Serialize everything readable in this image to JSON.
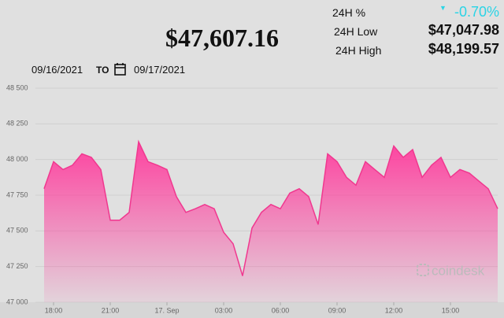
{
  "header": {
    "price": "$47,607.16",
    "change_label": "24H %",
    "change": "-0.70%",
    "low_label": "24H Low",
    "low": "$47,047.98",
    "high_label": "24H High",
    "high": "$48,199.57",
    "from_date": "09/16/2021",
    "to_label": "TO",
    "to_date": "09/17/2021"
  },
  "chart_data": {
    "type": "area",
    "color": "#f0388f",
    "watermark": "coindesk",
    "categories": [
      "17:30",
      "18:00",
      "18:30",
      "19:00",
      "19:30",
      "20:00",
      "20:30",
      "21:00",
      "21:30",
      "22:00",
      "22:30",
      "23:00",
      "23:30",
      "00:00",
      "00:30",
      "01:00",
      "01:30",
      "02:00",
      "02:30",
      "03:00",
      "03:30",
      "04:00",
      "04:30",
      "05:00",
      "05:30",
      "06:00",
      "06:30",
      "07:00",
      "07:30",
      "08:00",
      "08:30",
      "09:00",
      "09:30",
      "10:00",
      "10:30",
      "11:00",
      "11:30",
      "12:00",
      "12:30",
      "13:00",
      "13:30",
      "14:00",
      "14:30",
      "15:00",
      "15:30",
      "16:00",
      "16:30",
      "17:00",
      "17:30"
    ],
    "values": [
      47795,
      47985,
      47930,
      47960,
      48040,
      48015,
      47930,
      47575,
      47575,
      47630,
      48125,
      47985,
      47960,
      47930,
      47740,
      47630,
      47655,
      47685,
      47655,
      47490,
      47410,
      47185,
      47520,
      47630,
      47685,
      47655,
      47765,
      47795,
      47740,
      47545,
      48040,
      47985,
      47875,
      47820,
      47985,
      47930,
      47875,
      48095,
      48015,
      48070,
      47875,
      47960,
      48015,
      47875,
      47930,
      47905,
      47850,
      47795,
      47655
    ],
    "ylim": [
      47000,
      48500
    ],
    "yticks": [
      {
        "value": 47000,
        "label": "47 000"
      },
      {
        "value": 47250,
        "label": "47 250"
      },
      {
        "value": 47500,
        "label": "47 500"
      },
      {
        "value": 47750,
        "label": "47 750"
      },
      {
        "value": 48000,
        "label": "48 000"
      },
      {
        "value": 48250,
        "label": "48 250"
      },
      {
        "value": 48500,
        "label": "48 500"
      }
    ],
    "xticks": [
      "18:00",
      "21:00",
      {
        "value": "00:00",
        "label": "17. Sep"
      },
      "03:00",
      "06:00",
      "09:00",
      "12:00",
      "15:00"
    ],
    "grid": true
  }
}
